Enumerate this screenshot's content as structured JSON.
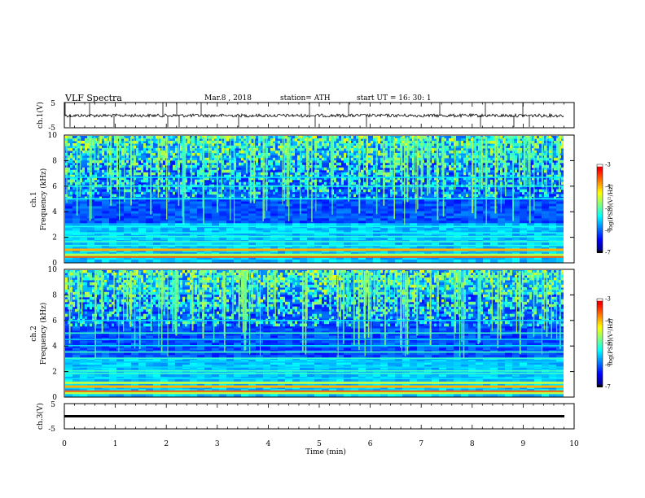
{
  "header": {
    "title": "VLF  Spectra",
    "date": "Mar.8  , 2018",
    "station": "station= ATH",
    "start": "start  UT  =    16: 30: 1"
  },
  "colors": {
    "background": "#ffffff",
    "waveform": "#000000",
    "spectrogram_low": "#000033",
    "spectrogram_high": "#ff0000"
  },
  "chart_data": [
    {
      "type": "line",
      "id": "ch1-waveform",
      "ylabel": "ch.1(V)",
      "ylim": [
        -5,
        5
      ],
      "yticks": [
        "5",
        "-5"
      ],
      "xlim": [
        0,
        10
      ],
      "series": [
        {
          "values_approx": "noisy baseline near 0 V with sparse spikes toward -5 V"
        }
      ]
    },
    {
      "type": "heatmap",
      "id": "ch1-spectrogram",
      "ylabel": "ch.1\nFrequency (kHz)",
      "ylabel_line1": "ch.1",
      "ylabel_line2": "Frequency  (kHz)",
      "ylim": [
        0,
        10
      ],
      "yticks": [
        "0",
        "2",
        "4",
        "6",
        "8",
        "10"
      ],
      "xlim": [
        0,
        9.8
      ],
      "colorbar": {
        "label": "log(PSD)(V²/Hz)",
        "range": [
          -7,
          -3
        ],
        "ticks": [
          "-3",
          "-4",
          "-5",
          "-6",
          "-7"
        ]
      },
      "features": {
        "sferic_bands_khz": [
          5,
          10
        ],
        "strong_bands_khz": [
          0.5,
          0.9,
          1.3,
          2.0,
          2.3,
          2.8,
          5.0,
          6.0
        ]
      }
    },
    {
      "type": "heatmap",
      "id": "ch2-spectrogram",
      "ylabel_line1": "ch.2",
      "ylabel_line2": "Frequency  (kHz)",
      "ylim": [
        0,
        10
      ],
      "yticks": [
        "0",
        "2",
        "4",
        "6",
        "8",
        "10"
      ],
      "xlim": [
        0,
        9.8
      ],
      "colorbar": {
        "label": "log(PSD)(V²/Hz)",
        "range": [
          -7,
          -3
        ],
        "ticks": [
          "-3",
          "-4",
          "-5",
          "-6",
          "-7"
        ]
      },
      "features": {
        "sferic_bands_khz": [
          5.5,
          10
        ],
        "strong_bands_khz": [
          0.3,
          0.8,
          1.4,
          2.0,
          2.3,
          3.0,
          4.0,
          5.0,
          6.0
        ]
      }
    },
    {
      "type": "line",
      "id": "ch3-waveform",
      "ylabel": "ch.3(V)",
      "ylim": [
        -5,
        5
      ],
      "yticks": [
        "5",
        "-5"
      ],
      "xlim": [
        0,
        10
      ],
      "series": [
        {
          "values_approx": "flat line near -2.5 V"
        }
      ]
    }
  ],
  "xaxis": {
    "label": "Time  (min)",
    "ticks": [
      "0",
      "1",
      "2",
      "3",
      "4",
      "5",
      "6",
      "7",
      "8",
      "9",
      "10"
    ]
  }
}
